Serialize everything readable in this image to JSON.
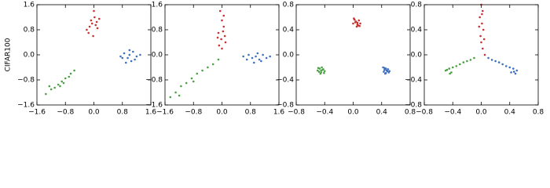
{
  "chart_data": [
    {
      "type": "scatter",
      "ylabel": "CIFAR100",
      "xlim": [
        -1.6,
        1.6
      ],
      "ylim": [
        -1.6,
        1.6
      ],
      "xticks": [
        {
          "value": -1.6,
          "label": "−1.6"
        },
        {
          "value": -0.8,
          "label": "−0.8"
        },
        {
          "value": 0,
          "label": "0.0"
        },
        0.8,
        1.6
      ],
      "yticks": [
        {
          "value": -1.6,
          "label": "−1.6"
        },
        {
          "value": -0.8,
          "label": "−0.8"
        },
        {
          "value": 0,
          "label": "0.0"
        },
        0.8,
        1.6
      ],
      "series": [
        {
          "color": "#c8312f",
          "x": [
            -0.05,
            0.02,
            -0.12,
            0.08,
            -0.2,
            0.1,
            0.0,
            -0.08,
            0.15,
            -0.15,
            0.05,
            -0.02
          ],
          "values": [
            1.0,
            1.2,
            0.9,
            1.05,
            0.8,
            0.85,
            1.4,
            1.1,
            1.15,
            0.7,
            0.95,
            0.6
          ]
        },
        {
          "color": "#4ca044",
          "x": [
            -1.35,
            -1.2,
            -1.1,
            -1.0,
            -0.9,
            -0.85,
            -0.7,
            -0.65,
            -1.25,
            -0.95,
            -0.8,
            -0.55
          ],
          "values": [
            -1.25,
            -1.1,
            -1.05,
            -0.95,
            -0.85,
            -0.9,
            -0.7,
            -0.6,
            -1.0,
            -1.0,
            -0.75,
            -0.5
          ]
        },
        {
          "color": "#3d6fc2",
          "x": [
            0.75,
            0.85,
            0.95,
            1.0,
            1.05,
            1.1,
            1.2,
            1.3,
            0.9,
            1.0,
            1.15,
            0.8
          ],
          "values": [
            -0.05,
            0.05,
            -0.1,
            0.0,
            -0.2,
            0.1,
            -0.05,
            0.0,
            -0.25,
            0.15,
            -0.15,
            -0.1
          ]
        }
      ]
    },
    {
      "type": "scatter",
      "xlim": [
        -1.6,
        1.6
      ],
      "ylim": [
        -1.6,
        1.6
      ],
      "xticks": [
        {
          "value": -1.6,
          "label": "−1.6"
        },
        {
          "value": -0.8,
          "label": "−0.8"
        },
        {
          "value": 0,
          "label": "0.0"
        },
        0.8,
        1.6
      ],
      "yticks": [
        {
          "value": -1.6,
          "label": "−1.6"
        },
        {
          "value": -0.8,
          "label": "−0.8"
        },
        {
          "value": 0,
          "label": "0.0"
        },
        0.8,
        1.6
      ],
      "series": [
        {
          "color": "#c8312f",
          "x": [
            -0.05,
            0.0,
            0.05,
            -0.1,
            0.08,
            -0.02,
            0.1,
            -0.08,
            0.0,
            0.03,
            -0.12,
            0.05
          ],
          "values": [
            1.4,
            1.1,
            0.9,
            0.7,
            0.6,
            0.5,
            0.4,
            0.3,
            0.2,
            0.75,
            0.55,
            1.25
          ]
        },
        {
          "color": "#4ca044",
          "x": [
            -1.45,
            -1.3,
            -1.15,
            -1.0,
            -0.85,
            -0.7,
            -0.55,
            -0.4,
            -0.25,
            -0.1,
            -1.2,
            -0.8
          ],
          "values": [
            -1.35,
            -1.2,
            -1.0,
            -0.9,
            -0.75,
            -0.6,
            -0.5,
            -0.4,
            -0.3,
            -0.15,
            -1.3,
            -0.85
          ]
        },
        {
          "color": "#3d6fc2",
          "x": [
            0.6,
            0.75,
            0.85,
            0.95,
            1.05,
            1.15,
            1.25,
            1.35,
            0.9,
            1.1,
            0.7,
            1.0
          ],
          "values": [
            -0.05,
            0.0,
            -0.1,
            -0.05,
            -0.15,
            0.0,
            -0.1,
            -0.05,
            -0.25,
            -0.2,
            -0.15,
            0.05
          ]
        }
      ]
    },
    {
      "type": "scatter",
      "xlim": [
        -0.8,
        0.8
      ],
      "ylim": [
        -0.8,
        0.8
      ],
      "xticks": [
        {
          "value": -0.8,
          "label": "−0.8"
        },
        {
          "value": -0.4,
          "label": "−0.4"
        },
        {
          "value": 0,
          "label": "0.0"
        },
        0.4,
        0.8
      ],
      "yticks": [
        {
          "value": -0.8,
          "label": "−0.8"
        },
        {
          "value": -0.4,
          "label": "−0.4"
        },
        {
          "value": 0,
          "label": "0.0"
        },
        0.4,
        0.8
      ],
      "series": [
        {
          "color": "#c8312f",
          "x": [
            0.0,
            0.03,
            0.06,
            0.08,
            0.05,
            0.1,
            0.02,
            0.07,
            0.04,
            0.09,
            0.01,
            0.06
          ],
          "values": [
            0.5,
            0.52,
            0.48,
            0.55,
            0.45,
            0.5,
            0.56,
            0.47,
            0.53,
            0.46,
            0.58,
            0.51
          ]
        },
        {
          "color": "#4ca044",
          "x": [
            -0.5,
            -0.47,
            -0.45,
            -0.43,
            -0.4,
            -0.46,
            -0.44,
            -0.48,
            -0.42,
            -0.45,
            -0.41,
            -0.49
          ],
          "values": [
            -0.25,
            -0.22,
            -0.28,
            -0.24,
            -0.26,
            -0.3,
            -0.2,
            -0.27,
            -0.23,
            -0.25,
            -0.29,
            -0.21
          ]
        },
        {
          "color": "#3d6fc2",
          "x": [
            0.42,
            0.44,
            0.46,
            0.48,
            0.5,
            0.45,
            0.47,
            0.43,
            0.49,
            0.46,
            0.51,
            0.44
          ],
          "values": [
            -0.2,
            -0.24,
            -0.22,
            -0.26,
            -0.28,
            -0.3,
            -0.25,
            -0.27,
            -0.23,
            -0.29,
            -0.26,
            -0.21
          ]
        }
      ]
    },
    {
      "type": "scatter",
      "xlim": [
        -0.8,
        0.8
      ],
      "ylim": [
        -0.8,
        0.8
      ],
      "xticks": [
        {
          "value": -0.8,
          "label": "−0.8"
        },
        {
          "value": -0.4,
          "label": "−0.4"
        },
        {
          "value": 0,
          "label": "0.0"
        },
        0.4,
        0.8
      ],
      "yticks": [
        {
          "value": -0.8,
          "label": "−0.8"
        },
        {
          "value": -0.4,
          "label": "−0.4"
        },
        {
          "value": 0,
          "label": "0.0"
        },
        0.4,
        0.8
      ],
      "series": [
        {
          "color": "#c8312f",
          "x": [
            0.0,
            0.02,
            -0.02,
            0.01,
            0.03,
            -0.01,
            0.0,
            0.02,
            -0.03,
            0.04,
            0.01,
            0.05
          ],
          "values": [
            0.8,
            0.7,
            0.6,
            0.5,
            0.4,
            0.3,
            0.2,
            0.1,
            0.45,
            0.25,
            0.65,
            0.0
          ]
        },
        {
          "color": "#4ca044",
          "x": [
            -0.5,
            -0.45,
            -0.42,
            -0.48,
            -0.4,
            -0.35,
            -0.3,
            -0.25,
            -0.2,
            -0.15,
            -0.1,
            -0.44
          ],
          "values": [
            -0.25,
            -0.22,
            -0.28,
            -0.24,
            -0.2,
            -0.18,
            -0.15,
            -0.12,
            -0.1,
            -0.08,
            -0.05,
            -0.3
          ]
        },
        {
          "color": "#3d6fc2",
          "x": [
            0.5,
            0.45,
            0.42,
            0.48,
            0.4,
            0.35,
            0.3,
            0.25,
            0.2,
            0.15,
            0.1,
            0.46
          ],
          "values": [
            -0.25,
            -0.22,
            -0.28,
            -0.3,
            -0.2,
            -0.18,
            -0.15,
            -0.12,
            -0.1,
            -0.08,
            -0.05,
            -0.27
          ]
        }
      ]
    }
  ]
}
